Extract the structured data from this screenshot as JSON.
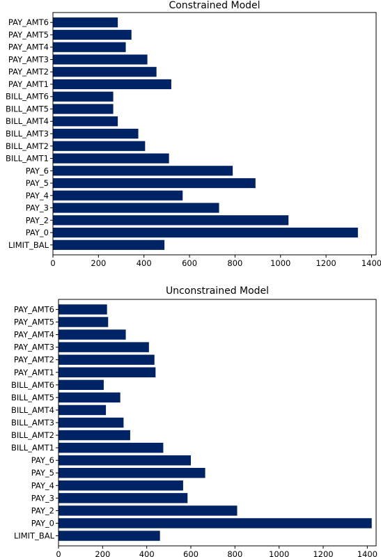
{
  "chart_data": [
    {
      "type": "bar",
      "orientation": "horizontal",
      "title": "Constrained Model",
      "xlabel": "",
      "ylabel": "",
      "xlim": [
        0,
        1420
      ],
      "xticks": [
        0,
        200,
        400,
        600,
        800,
        1000,
        1200,
        1400
      ],
      "bar_color": "#002366",
      "grid": false,
      "categories": [
        "LIMIT_BAL",
        "PAY_0",
        "PAY_2",
        "PAY_3",
        "PAY_4",
        "PAY_5",
        "PAY_6",
        "BILL_AMT1",
        "BILL_AMT2",
        "BILL_AMT3",
        "BILL_AMT4",
        "BILL_AMT5",
        "BILL_AMT6",
        "PAY_AMT1",
        "PAY_AMT2",
        "PAY_AMT3",
        "PAY_AMT4",
        "PAY_AMT5",
        "PAY_AMT6"
      ],
      "values": [
        490,
        1340,
        1035,
        730,
        570,
        890,
        790,
        510,
        405,
        375,
        285,
        265,
        265,
        520,
        455,
        415,
        320,
        345,
        285
      ]
    },
    {
      "type": "bar",
      "orientation": "horizontal",
      "title": "Unconstrained Model",
      "xlabel": "",
      "ylabel": "",
      "xlim": [
        0,
        1440
      ],
      "xticks": [
        0,
        200,
        400,
        600,
        800,
        1000,
        1200,
        1400
      ],
      "bar_color": "#002366",
      "grid": false,
      "categories": [
        "LIMIT_BAL",
        "PAY_0",
        "PAY_2",
        "PAY_3",
        "PAY_4",
        "PAY_5",
        "PAY_6",
        "BILL_AMT1",
        "BILL_AMT2",
        "BILL_AMT3",
        "BILL_AMT4",
        "BILL_AMT5",
        "BILL_AMT6",
        "PAY_AMT1",
        "PAY_AMT2",
        "PAY_AMT3",
        "PAY_AMT4",
        "PAY_AMT5",
        "PAY_AMT6"
      ],
      "values": [
        460,
        1420,
        810,
        585,
        565,
        665,
        600,
        475,
        325,
        295,
        215,
        280,
        205,
        440,
        435,
        410,
        305,
        225,
        220
      ]
    }
  ]
}
